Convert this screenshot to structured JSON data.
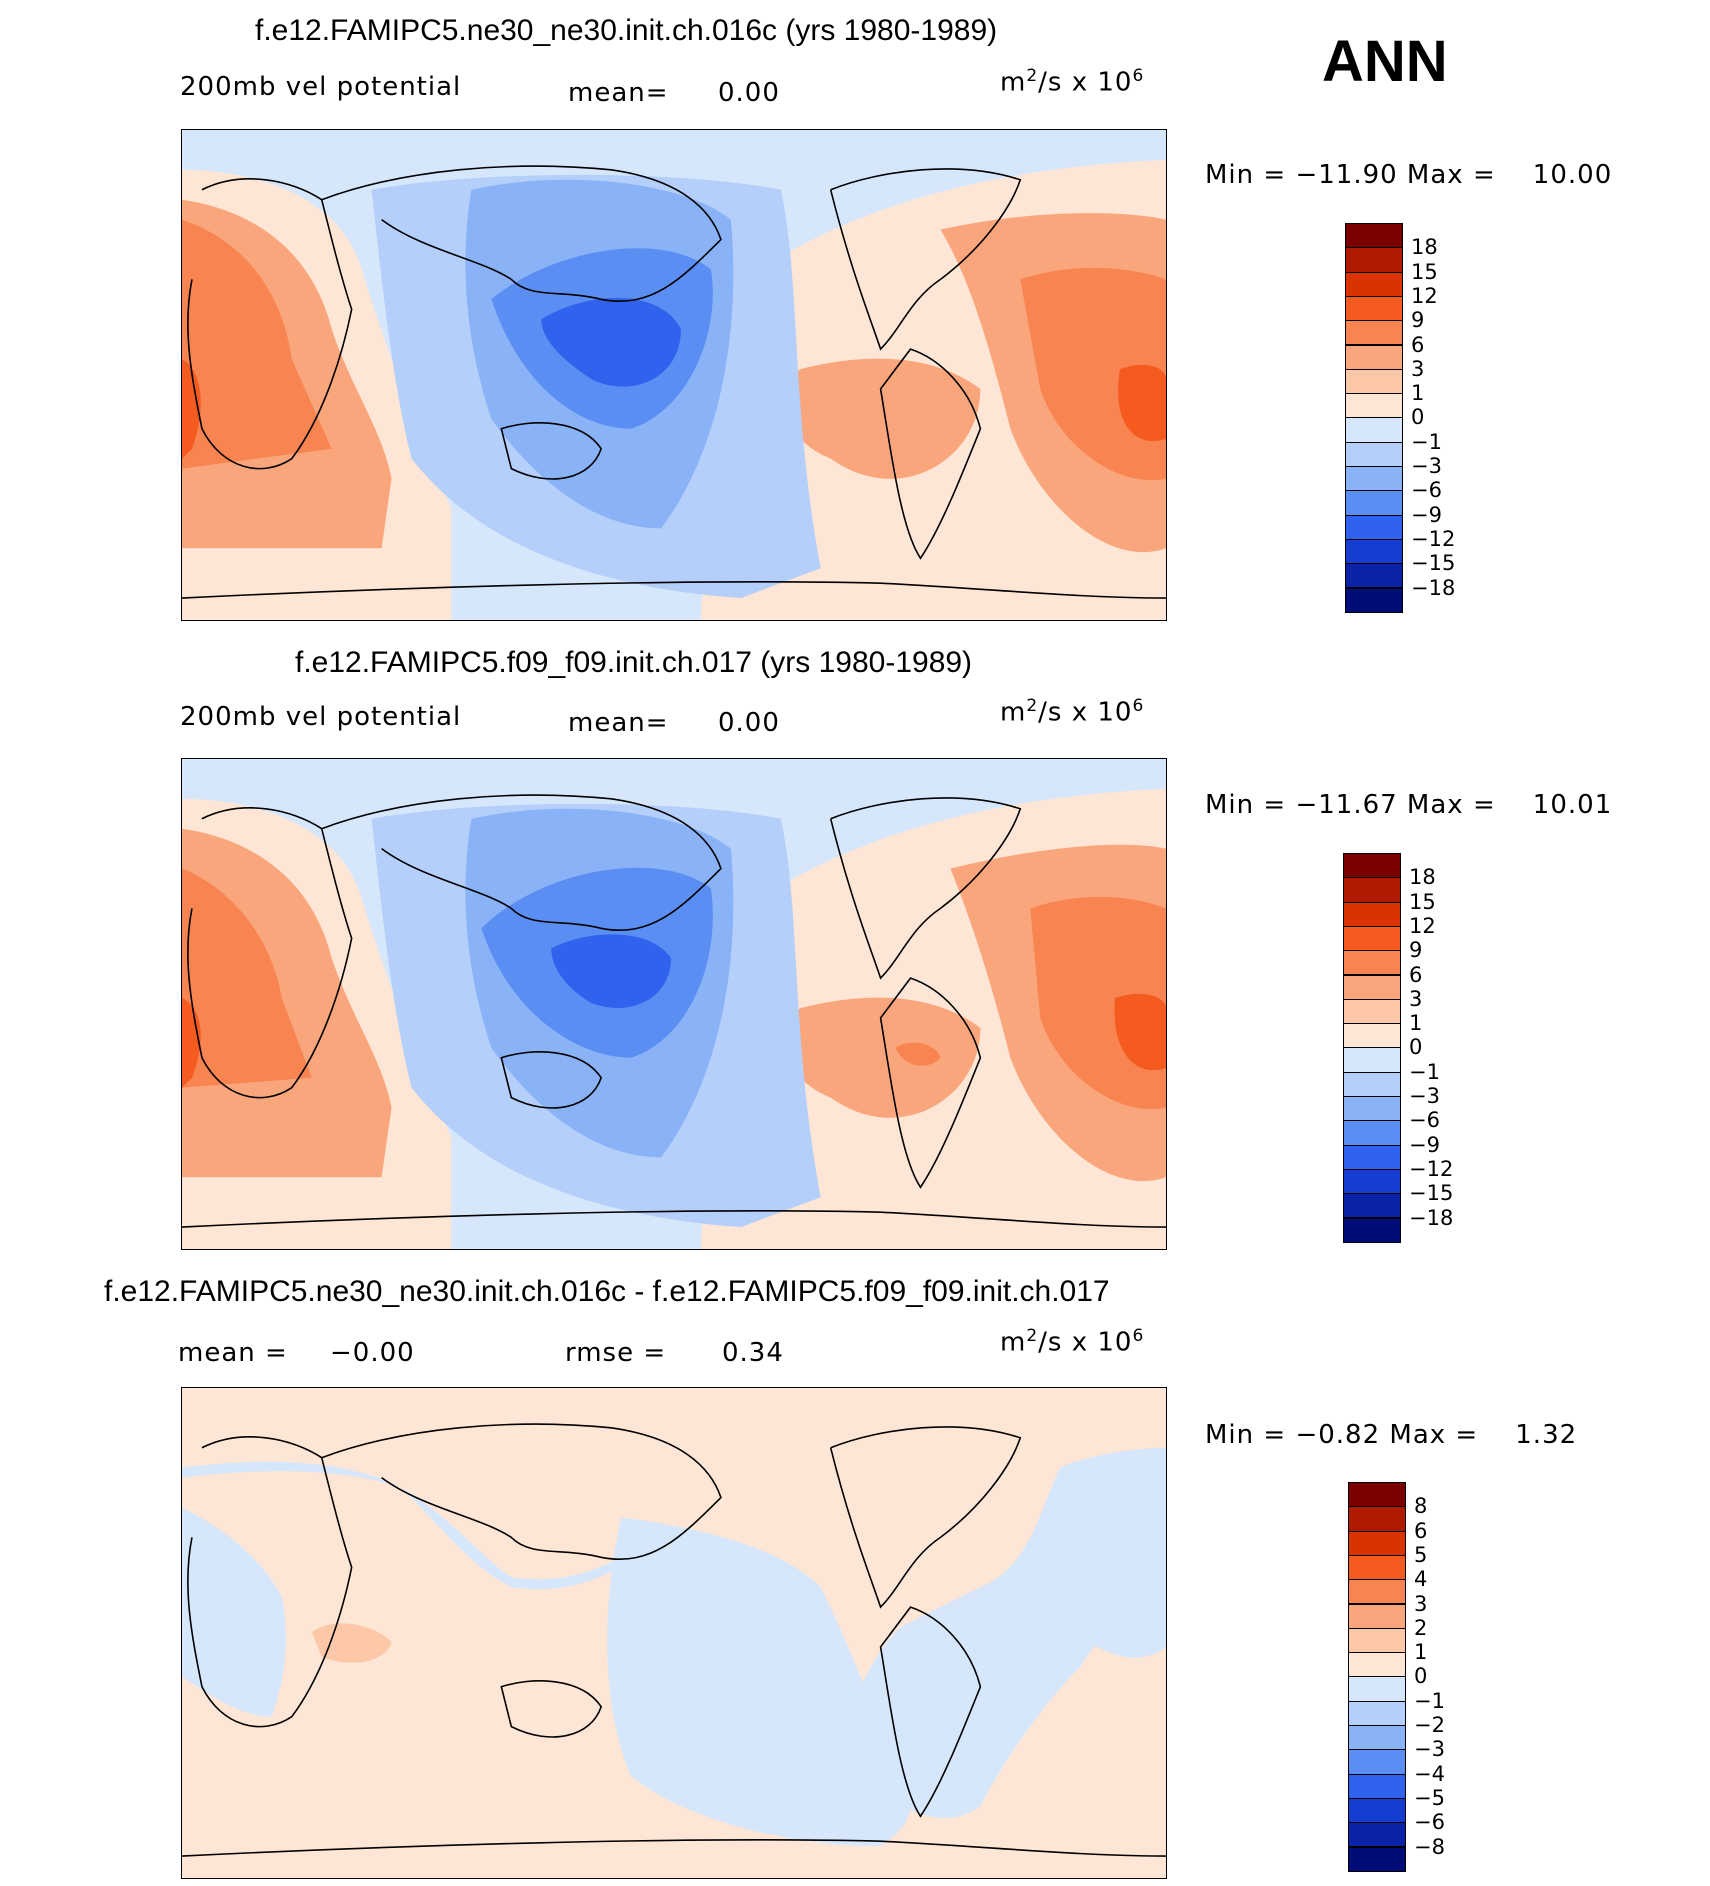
{
  "season": "ANN",
  "units": {
    "base": "m",
    "exp": "2",
    "suffix": "/s  x 10",
    "scale_exp": "6"
  },
  "panels": [
    {
      "id": "p1",
      "title": "f.e12.FAMIPC5.ne30_ne30.init.ch.016c (yrs 1980-1989)",
      "variable": "200mb vel potential",
      "stat1_label": "mean=",
      "stat1_value": "0.00",
      "minmax_label": "Min  =  −11.90  Max  =",
      "max_value": "10.00",
      "levels": [
        "18",
        "15",
        "12",
        "9",
        "6",
        "3",
        "1",
        "0",
        "−1",
        "−3",
        "−6",
        "−9",
        "−12",
        "−15",
        "−18"
      ],
      "colors": [
        "#7a0000",
        "#b01a00",
        "#d93300",
        "#f55a1f",
        "#f78451",
        "#faa67c",
        "#fcc8a8",
        "#fde6d5",
        "#d7e7fb",
        "#b4cffa",
        "#8ab2f7",
        "#5b8ef2",
        "#2f63ee",
        "#153ed0",
        "#0a22a6",
        "#000c78"
      ]
    },
    {
      "id": "p2",
      "title": "f.e12.FAMIPC5.f09_f09.init.ch.017 (yrs 1980-1989)",
      "variable": "200mb vel potential",
      "stat1_label": "mean=",
      "stat1_value": "0.00",
      "minmax_label": "Min  =  −11.67  Max  =",
      "max_value": "10.01",
      "levels": [
        "18",
        "15",
        "12",
        "9",
        "6",
        "3",
        "1",
        "0",
        "−1",
        "−3",
        "−6",
        "−9",
        "−12",
        "−15",
        "−18"
      ],
      "colors": [
        "#7a0000",
        "#b01a00",
        "#d93300",
        "#f55a1f",
        "#f78451",
        "#faa67c",
        "#fcc8a8",
        "#fde6d5",
        "#d7e7fb",
        "#b4cffa",
        "#8ab2f7",
        "#5b8ef2",
        "#2f63ee",
        "#153ed0",
        "#0a22a6",
        "#000c78"
      ]
    },
    {
      "id": "p3",
      "title": "f.e12.FAMIPC5.ne30_ne30.init.ch.016c - f.e12.FAMIPC5.f09_f09.init.ch.017",
      "variable": "",
      "stat1_label": "mean  =",
      "stat1_value": "−0.00",
      "stat2_label": "rmse  =",
      "stat2_value": "0.34",
      "minmax_label": "Min  =   −0.82  Max  =",
      "max_value": "1.32",
      "levels": [
        "8",
        "6",
        "5",
        "4",
        "3",
        "2",
        "1",
        "0",
        "−1",
        "−2",
        "−3",
        "−4",
        "−5",
        "−6",
        "−8"
      ],
      "colors": [
        "#7a0000",
        "#b01a00",
        "#d93300",
        "#f55a1f",
        "#f78451",
        "#faa67c",
        "#fcc8a8",
        "#fde6d5",
        "#d7e7fb",
        "#b4cffa",
        "#8ab2f7",
        "#5b8ef2",
        "#2f63ee",
        "#153ed0",
        "#0a22a6",
        "#000c78"
      ]
    }
  ]
}
